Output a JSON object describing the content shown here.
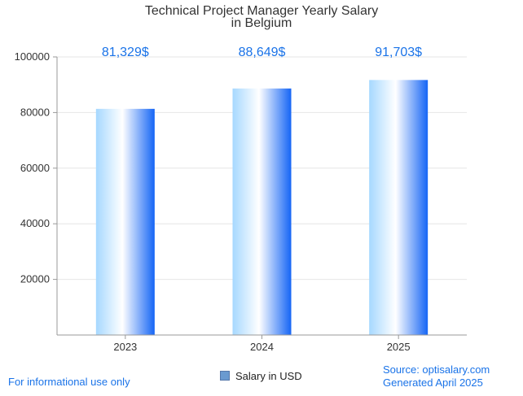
{
  "chart_data": {
    "type": "bar",
    "title": [
      "Technical Project Manager Yearly Salary",
      "in Belgium"
    ],
    "categories": [
      "2023",
      "2024",
      "2025"
    ],
    "series": [
      {
        "name": "Salary in USD",
        "values": [
          81329,
          88649,
          91703
        ],
        "labels": [
          "81,329$",
          "88,649$",
          "91,703$"
        ]
      }
    ],
    "ylim": [
      0,
      100000
    ],
    "yticks": [
      "20000",
      "40000",
      "60000",
      "80000",
      "100000"
    ],
    "grid": true,
    "legend_position": "bottom-center"
  },
  "footer": {
    "disclaimer": "For informational use only",
    "source": "Source: optisalary.com",
    "generated": "Generated April 2025"
  },
  "colors": {
    "accent": "#1a73e8",
    "bar_light": "#a6d8ff",
    "bar_white": "#ffffff",
    "bar_dark": "#1565f5",
    "grid": "#e6e6e6",
    "axis": "#999999",
    "legend_swatch": "#6a9ad0"
  }
}
